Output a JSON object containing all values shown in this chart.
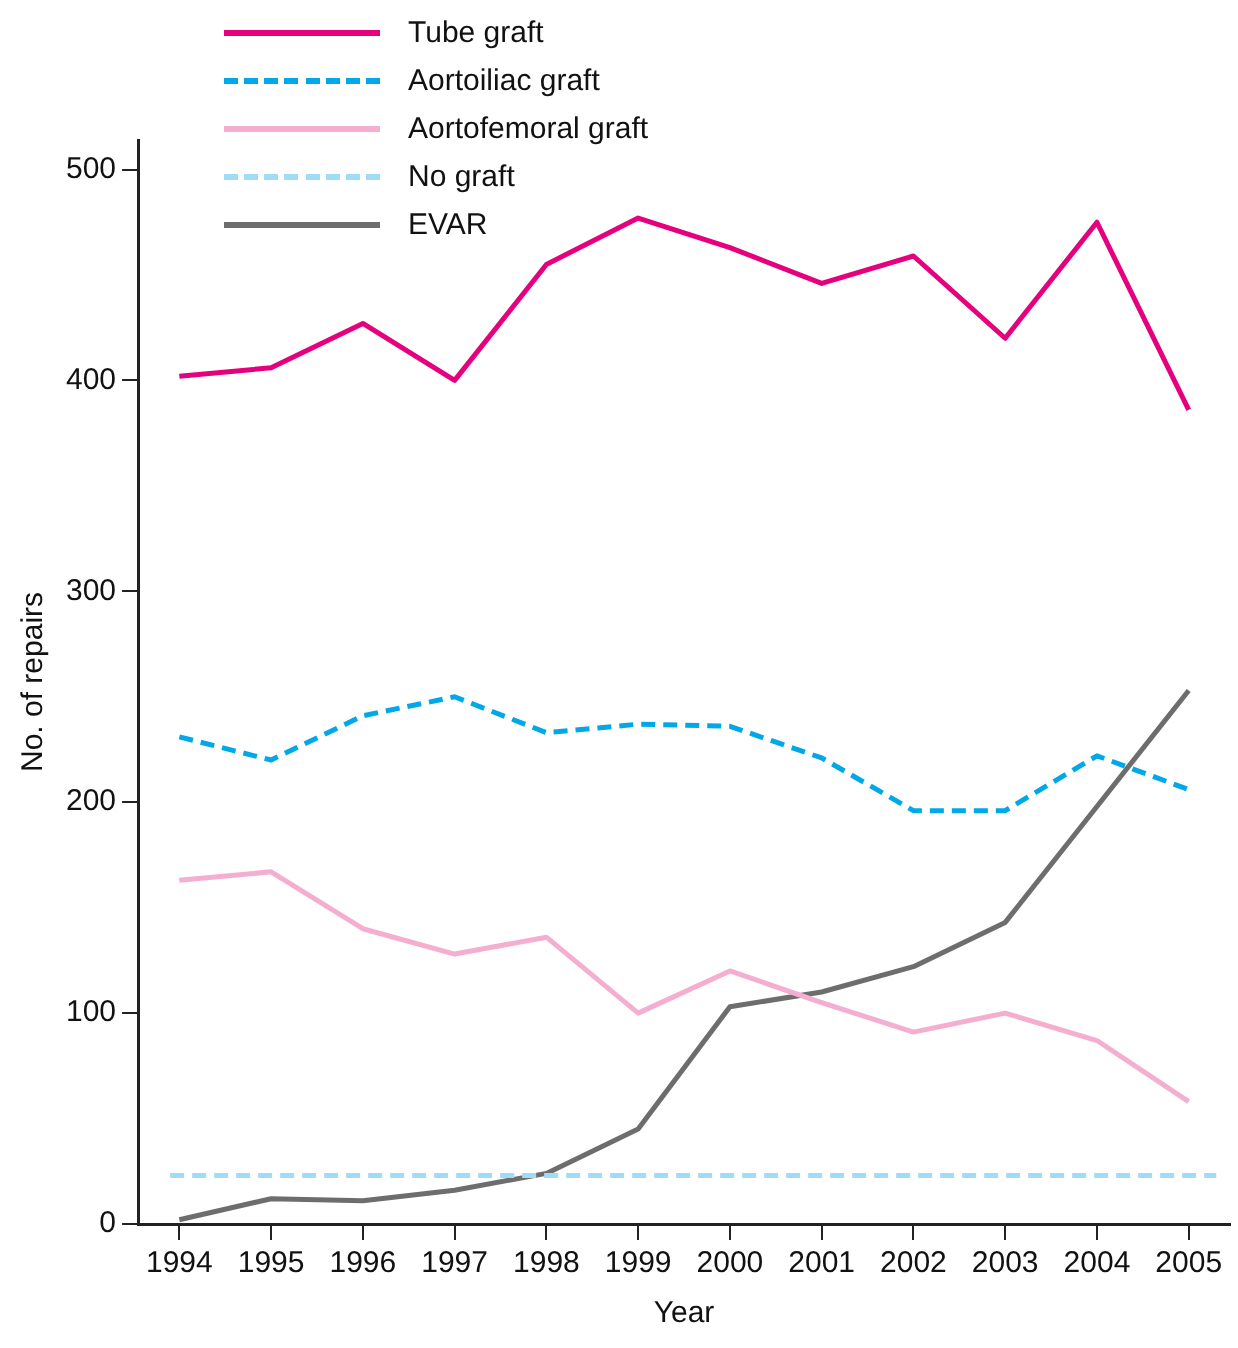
{
  "chart_data": {
    "type": "line",
    "xlabel": "Year",
    "ylabel": "No. of repairs",
    "x": [
      1994,
      1995,
      1996,
      1997,
      1998,
      1999,
      2000,
      2001,
      2002,
      2003,
      2004,
      2005
    ],
    "xlim": [
      1993.55,
      2005.45
    ],
    "xticks": [
      1994,
      1995,
      1996,
      1997,
      1998,
      1999,
      2000,
      2001,
      2002,
      2003,
      2004,
      2005
    ],
    "ylim": [
      0,
      514
    ],
    "yticks": [
      0,
      100,
      200,
      300,
      400,
      500
    ],
    "grid": false,
    "legend": "top left",
    "marker": "none",
    "series": [
      {
        "name": "Tube graft",
        "color": "#e5007e",
        "line_style": "solid",
        "values": [
          402,
          406,
          427,
          400,
          455,
          477,
          463,
          446,
          459,
          420,
          475,
          386
        ]
      },
      {
        "name": "Aortoiliac graft",
        "color": "#00a8e8",
        "line_style": "dashed",
        "values": [
          231,
          220,
          241,
          250,
          233,
          237,
          236,
          221,
          196,
          196,
          222,
          206
        ]
      },
      {
        "name": "Aortofemoral graft",
        "color": "#f4aed0",
        "line_style": "solid",
        "values": [
          163,
          167,
          140,
          128,
          136,
          100,
          120,
          105,
          91,
          100,
          87,
          58
        ]
      },
      {
        "name": "No graft",
        "color": "#9fdcf5",
        "line_style": "dashed",
        "x": [
          1993.9,
          2005.3
        ],
        "values": [
          23,
          23
        ]
      },
      {
        "name": "EVAR",
        "color": "#6d6d6d",
        "line_style": "solid",
        "values": [
          2,
          12,
          11,
          16,
          24,
          45,
          103,
          110,
          122,
          143,
          198,
          253
        ]
      }
    ]
  }
}
